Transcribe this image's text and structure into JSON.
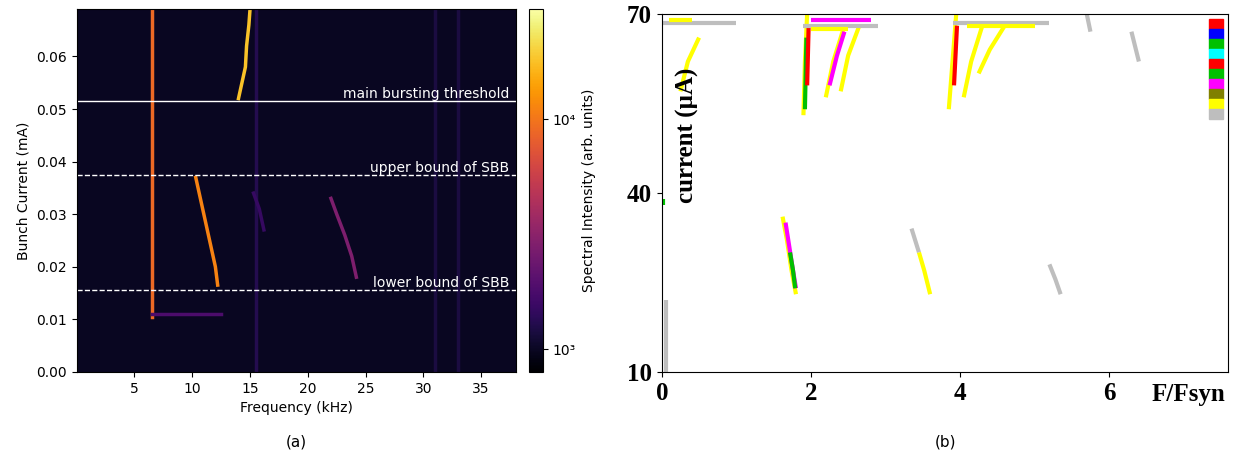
{
  "chart_data": [
    {
      "type": "heatmap",
      "caption": "(a)",
      "xlabel": "Frequency (kHz)",
      "ylabel": "Bunch Current (mA)",
      "xlim": [
        0,
        38
      ],
      "xticks": [
        5,
        10,
        15,
        20,
        25,
        30,
        35
      ],
      "ylim": [
        0,
        0.069
      ],
      "yticks": [
        {
          "value": 0,
          "label": "0.00"
        },
        {
          "value": 0.01,
          "label": "0.01"
        },
        {
          "value": 0.02,
          "label": "0.02"
        },
        {
          "value": 0.03,
          "label": "0.03"
        },
        {
          "value": 0.04,
          "label": "0.04"
        },
        {
          "value": 0.05,
          "label": "0.05"
        },
        {
          "value": 0.06,
          "label": "0.06"
        }
      ],
      "background": 1000,
      "features": [
        {
          "x": [
            6.5,
            6.5
          ],
          "y": [
            0.0105,
            0.069
          ],
          "value": 9000
        },
        {
          "x": [
            15.5,
            15.5
          ],
          "y": [
            0,
            0.069
          ],
          "value": 1300
        },
        {
          "x": [
            31,
            31
          ],
          "y": [
            0,
            0.069
          ],
          "value": 1200
        },
        {
          "x": [
            33,
            33
          ],
          "y": [
            0,
            0.069
          ],
          "value": 1200
        },
        {
          "x": [
            6.5,
            12.5
          ],
          "y": [
            0.011,
            0.011
          ],
          "value": 1800
        },
        {
          "x": [
            12.2,
            12.0,
            11.5,
            11.0,
            10.5,
            10.3
          ],
          "y": [
            0.0165,
            0.02,
            0.025,
            0.03,
            0.035,
            0.037
          ],
          "value": 11000
        },
        {
          "x": [
            24.2,
            23.8,
            23.2,
            22.5,
            22.0
          ],
          "y": [
            0.018,
            0.022,
            0.026,
            0.03,
            0.033
          ],
          "value": 2800
        },
        {
          "x": [
            16.2,
            15.8,
            15.3
          ],
          "y": [
            0.027,
            0.031,
            0.034
          ],
          "value": 1500
        },
        {
          "x": [
            14.0,
            14.3,
            14.6,
            14.7,
            14.9,
            15.0
          ],
          "y": [
            0.052,
            0.055,
            0.058,
            0.062,
            0.066,
            0.069
          ],
          "value": 18000
        }
      ],
      "hlines": [
        {
          "y": 0.0515,
          "label": "main bursting threshold",
          "line_style": "solid"
        },
        {
          "y": 0.0375,
          "label": "upper bound of SBB",
          "line_style": "dashed"
        },
        {
          "y": 0.0155,
          "label": "lower bound of SBB",
          "line_style": "dashed"
        }
      ],
      "colorbar": {
        "label": "Spectral Intensity (arb. units)",
        "lim": [
          800,
          30000
        ],
        "ticks": [
          {
            "value": 1000,
            "label": "10³"
          },
          {
            "value": 10000,
            "label": "10⁴"
          }
        ]
      }
    },
    {
      "type": "line",
      "caption": "(b)",
      "xlabel": "F/Fsyn",
      "ylabel": "current (µA)",
      "xlim": [
        0,
        7.6
      ],
      "xticks": [
        0,
        2,
        4,
        6
      ],
      "ylim": [
        10,
        70
      ],
      "yticks": [
        10,
        40,
        70
      ],
      "colors": [
        "#ff0000",
        "#0000ff",
        "#00c000",
        "#00ffff",
        "#ff0000",
        "#00c000",
        "#ff00ff",
        "#808000",
        "#ffff00",
        "#bebebe"
      ],
      "series": [
        {
          "color": "#bebebe",
          "x": [
            0.05,
            0.05
          ],
          "y": [
            10,
            22
          ]
        },
        {
          "color": "#00c000",
          "x": [
            0.02,
            0.02
          ],
          "y": [
            38,
            39
          ]
        },
        {
          "color": "#ffff00",
          "x": [
            1.62,
            1.68,
            1.74,
            1.8
          ],
          "y": [
            36,
            32,
            27,
            23
          ]
        },
        {
          "color": "#ff00ff",
          "x": [
            1.66,
            1.71,
            1.76,
            1.8
          ],
          "y": [
            35,
            31,
            27,
            24
          ]
        },
        {
          "color": "#00c000",
          "x": [
            1.72,
            1.76,
            1.79
          ],
          "y": [
            30,
            27,
            24
          ]
        },
        {
          "color": "#bebebe",
          "x": [
            3.35,
            3.45
          ],
          "y": [
            34,
            30
          ]
        },
        {
          "color": "#ffff00",
          "x": [
            3.45,
            3.52,
            3.6
          ],
          "y": [
            30,
            27,
            23
          ]
        },
        {
          "color": "#bebebe",
          "x": [
            5.2,
            5.28,
            5.35
          ],
          "y": [
            28,
            25.5,
            23
          ]
        },
        {
          "color": "#ffff00",
          "x": [
            0.25,
            0.35,
            0.5
          ],
          "y": [
            57,
            62,
            66
          ]
        },
        {
          "color": "#ffff00",
          "x": [
            1.9,
            1.92,
            1.95
          ],
          "y": [
            53,
            62,
            70
          ]
        },
        {
          "color": "#00c000",
          "x": [
            1.92,
            1.94
          ],
          "y": [
            54,
            66
          ]
        },
        {
          "color": "#ff0000",
          "x": [
            1.95,
            1.97
          ],
          "y": [
            58,
            68
          ]
        },
        {
          "color": "#ffff00",
          "x": [
            2.2,
            2.3,
            2.45
          ],
          "y": [
            56,
            62,
            68
          ]
        },
        {
          "color": "#ff00ff",
          "x": [
            2.25,
            2.35,
            2.45
          ],
          "y": [
            58,
            63,
            67
          ]
        },
        {
          "color": "#ffff00",
          "x": [
            2.4,
            2.5,
            2.65
          ],
          "y": [
            57,
            63,
            68
          ]
        },
        {
          "color": "#ffff00",
          "x": [
            3.85,
            3.9,
            3.95
          ],
          "y": [
            54,
            62,
            70
          ]
        },
        {
          "color": "#ff0000",
          "x": [
            3.92,
            3.96
          ],
          "y": [
            58,
            68
          ]
        },
        {
          "color": "#ffff00",
          "x": [
            4.05,
            4.15,
            4.3
          ],
          "y": [
            56,
            62,
            68
          ]
        },
        {
          "color": "#ffff00",
          "x": [
            4.25,
            4.4,
            4.6
          ],
          "y": [
            60,
            64,
            68
          ]
        },
        {
          "color": "#bebebe",
          "x": [
            0.0,
            1.0
          ],
          "y": [
            68.5,
            68.5
          ]
        },
        {
          "color": "#ffff00",
          "x": [
            0.1,
            0.4
          ],
          "y": [
            69,
            69
          ]
        },
        {
          "color": "#bebebe",
          "x": [
            1.9,
            2.9
          ],
          "y": [
            68,
            68
          ]
        },
        {
          "color": "#ff00ff",
          "x": [
            2.0,
            2.8
          ],
          "y": [
            69,
            69
          ]
        },
        {
          "color": "#ffff00",
          "x": [
            2.0,
            2.5
          ],
          "y": [
            67.5,
            67.5
          ]
        },
        {
          "color": "#bebebe",
          "x": [
            3.9,
            5.2
          ],
          "y": [
            68.5,
            68.5
          ]
        },
        {
          "color": "#ffff00",
          "x": [
            4.1,
            5.0
          ],
          "y": [
            68,
            68
          ]
        },
        {
          "color": "#bebebe",
          "x": [
            5.7,
            5.75
          ],
          "y": [
            70,
            67
          ]
        },
        {
          "color": "#bebebe",
          "x": [
            6.3,
            6.4
          ],
          "y": [
            67,
            62
          ]
        }
      ]
    }
  ]
}
